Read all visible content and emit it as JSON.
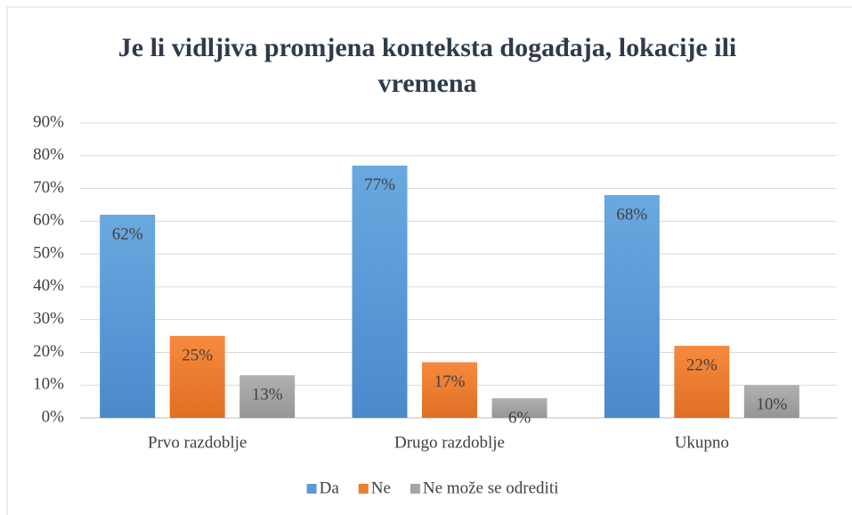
{
  "chart_data": {
    "type": "bar",
    "title": "Je li vidljiva promjena konteksta događaja, lokacije ili vremena",
    "categories": [
      "Prvo razdoblje",
      "Drugo razdoblje",
      "Ukupno"
    ],
    "series": [
      {
        "name": "Da",
        "color": "#5b9bd5",
        "values": [
          62,
          77,
          68
        ],
        "value_labels": [
          "62%",
          "77%",
          "68%"
        ]
      },
      {
        "name": "Ne",
        "color": "#ed7d31",
        "values": [
          25,
          17,
          22
        ],
        "value_labels": [
          "25%",
          "17%",
          "22%"
        ]
      },
      {
        "name": "Ne može se odrediti",
        "color": "#a5a5a5",
        "values": [
          13,
          6,
          10
        ],
        "value_labels": [
          "13%",
          "6%",
          "10%"
        ]
      }
    ],
    "ylim": [
      0,
      90
    ],
    "yticks": [
      {
        "value": 0,
        "label": "0%"
      },
      {
        "value": 10,
        "label": "10%"
      },
      {
        "value": 20,
        "label": "20%"
      },
      {
        "value": 30,
        "label": "30%"
      },
      {
        "value": 40,
        "label": "40%"
      },
      {
        "value": 50,
        "label": "50%"
      },
      {
        "value": 60,
        "label": "60%"
      },
      {
        "value": 70,
        "label": "70%"
      },
      {
        "value": 80,
        "label": "80%"
      },
      {
        "value": 90,
        "label": "90%"
      }
    ],
    "grid": true,
    "legend": "bottom"
  }
}
